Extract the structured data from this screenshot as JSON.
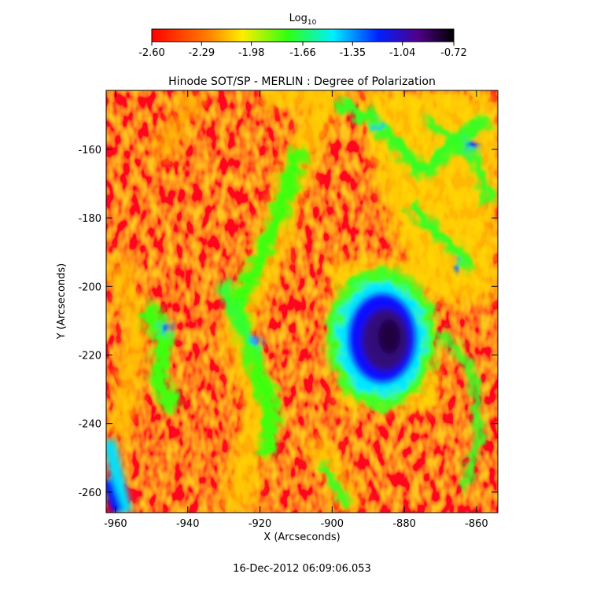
{
  "chart_data": {
    "type": "heatmap",
    "title": "Hinode SOT/SP - MERLIN : Degree of Polarization",
    "xlabel": "X (Arcseconds)",
    "ylabel": "Y (Arcseconds)",
    "xlim": [
      -962.6,
      -854.1
    ],
    "ylim": [
      -266.0,
      -142.8
    ],
    "xticks": [
      -960,
      -940,
      -920,
      -900,
      -880,
      -860
    ],
    "yticks": [
      -160,
      -180,
      -200,
      -220,
      -240,
      -260
    ],
    "colorbar": {
      "label": "Log",
      "label_subscript": "10",
      "clim": [
        -2.6,
        -0.72
      ],
      "ticks": [
        {
          "value": -2.6,
          "label": "-2.60"
        },
        {
          "value": -2.29,
          "label": "-2.29"
        },
        {
          "value": -1.98,
          "label": "-1.98"
        },
        {
          "value": -1.66,
          "label": "-1.66"
        },
        {
          "value": -1.35,
          "label": "-1.35"
        },
        {
          "value": -1.04,
          "label": "-1.04"
        },
        {
          "value": -0.72,
          "label": "-0.72"
        }
      ]
    },
    "footer": "16-Dec-2012 06:09:06.053"
  }
}
